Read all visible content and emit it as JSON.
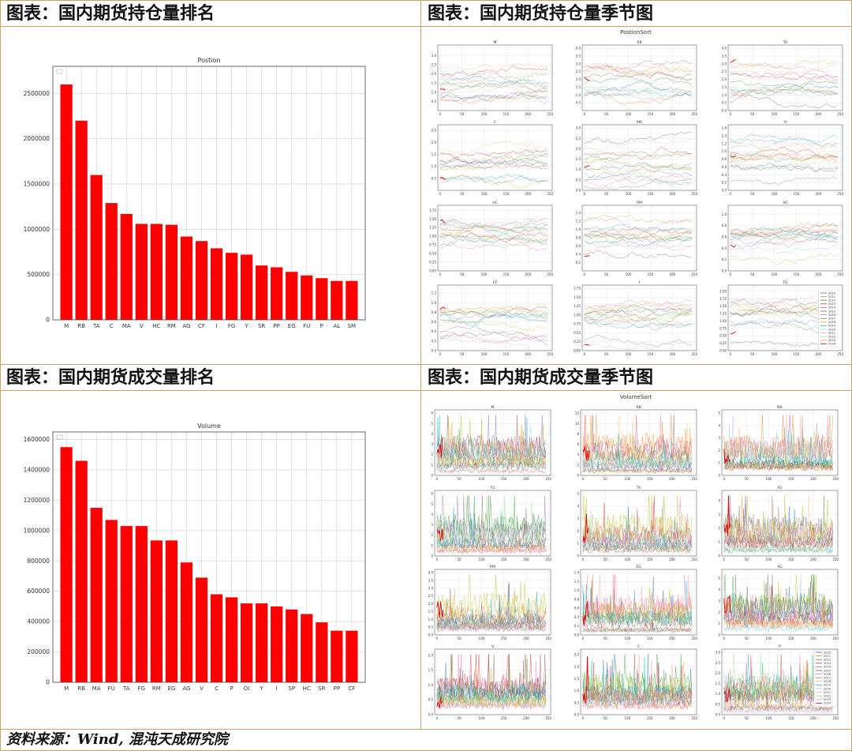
{
  "headers": {
    "position_rank": "图表：国内期货持仓量排名",
    "position_season": "图表：国内期货持仓量季节图",
    "volume_rank": "图表：国内期货成交量排名",
    "volume_season": "图表：国内期货成交量季节图"
  },
  "footer": "资料来源：Wind, 混沌天成研究院",
  "colors": {
    "bar": "#ff0000",
    "series": [
      "#1f77b4",
      "#ff7f0e",
      "#2ca02c",
      "#d62728",
      "#9467bd",
      "#8c564b",
      "#e377c2",
      "#7f7f7f",
      "#bcbd22",
      "#17becf",
      "#aec7e8",
      "#ffbb78",
      "#98df8a",
      "#ff9896",
      "#c5b0d5"
    ]
  },
  "chart_data": [
    {
      "id": "position_rank",
      "type": "bar",
      "title": "Postion",
      "categories": [
        "M",
        "RB",
        "TA",
        "C",
        "MA",
        "V",
        "HC",
        "RM",
        "AG",
        "CF",
        "I",
        "FG",
        "Y",
        "SR",
        "PP",
        "EG",
        "FU",
        "P",
        "AL",
        "SM"
      ],
      "values": [
        2600000,
        2200000,
        1600000,
        1290000,
        1170000,
        1060000,
        1060000,
        1050000,
        920000,
        870000,
        790000,
        740000,
        720000,
        600000,
        580000,
        530000,
        490000,
        460000,
        430000,
        430000
      ],
      "yticks": [
        0,
        500000,
        1000000,
        1500000,
        2000000,
        2500000
      ],
      "ylim": [
        0,
        2800000
      ]
    },
    {
      "id": "volume_rank",
      "type": "bar",
      "title": "Volume",
      "categories": [
        "M",
        "RB",
        "MA",
        "FU",
        "TA",
        "FG",
        "RM",
        "EG",
        "AG",
        "V",
        "C",
        "P",
        "OI",
        "Y",
        "I",
        "SP",
        "HC",
        "SR",
        "PP",
        "CF"
      ],
      "values": [
        1550000,
        1460000,
        1150000,
        1070000,
        1030000,
        1030000,
        935000,
        935000,
        790000,
        690000,
        580000,
        560000,
        520000,
        520000,
        500000,
        480000,
        450000,
        395000,
        340000,
        340000
      ],
      "yticks": [
        0,
        200000,
        400000,
        600000,
        800000,
        1000000,
        1200000,
        1400000,
        1600000
      ],
      "ylim": [
        0,
        1650000
      ]
    },
    {
      "id": "position_season",
      "type": "line",
      "title": "PostionSort",
      "x_ticks": [
        0,
        50,
        100,
        150,
        200,
        250
      ],
      "legend": [
        "2010",
        "2011",
        "2012",
        "2013",
        "2014",
        "2015",
        "2016",
        "2017",
        "2018",
        "2019",
        "2020",
        "2021",
        "2022",
        "2023",
        "2024"
      ],
      "legend_position": "lower-right (last subplot)",
      "subplots": [
        {
          "title": "M",
          "yticks": [
            "0.5",
            "1.0",
            "1.5",
            "2.0",
            "2.5",
            "3.0"
          ],
          "ymax": 3.4
        },
        {
          "title": "RB",
          "yticks": [
            "0.5",
            "1.0",
            "1.5",
            "2.0",
            "2.5",
            "3.0",
            "3.5",
            "4.0"
          ],
          "ymax": 4.0
        },
        {
          "title": "TA",
          "yticks": [
            "0.0",
            "0.5",
            "1.0",
            "1.5",
            "2.0",
            "2.5",
            "3.0",
            "3.5",
            "4.0"
          ],
          "ymax": 4.0
        },
        {
          "title": "C",
          "yticks": [
            "0.5",
            "1.0",
            "1.5",
            "2.0",
            "2.5"
          ],
          "ymax": 2.6
        },
        {
          "title": "MA",
          "yticks": [
            "0.0",
            "0.5",
            "1.0",
            "1.5",
            "2.0",
            "2.5",
            "3.0"
          ],
          "ymax": 3.0
        },
        {
          "title": "V",
          "yticks": [
            "0.0",
            "0.2",
            "0.4",
            "0.6",
            "0.8",
            "1.0",
            "1.2",
            "1.4",
            "1.6"
          ],
          "ymax": 1.6
        },
        {
          "title": "HC",
          "yticks": [
            "0.00",
            "0.25",
            "0.50",
            "0.75",
            "1.00",
            "1.25",
            "1.50",
            "1.75"
          ],
          "ymax": 1.8
        },
        {
          "title": "RM",
          "yticks": [
            "0.2",
            "0.4",
            "0.6",
            "0.8",
            "1.0",
            "1.2",
            "1.4"
          ],
          "ymax": 1.5
        },
        {
          "title": "AG",
          "yticks": [
            "0.0",
            "0.2",
            "0.4",
            "0.6",
            "0.8",
            "1.0"
          ],
          "ymax": 1.1
        },
        {
          "title": "CF",
          "yticks": [
            "0.0",
            "0.2",
            "0.4",
            "0.6",
            "0.8",
            "1.0",
            "1.2"
          ],
          "ymax": 1.3
        },
        {
          "title": "I",
          "yticks": [
            "0.00",
            "0.25",
            "0.50",
            "0.75",
            "1.00",
            "1.25",
            "1.50",
            "1.75"
          ],
          "ymax": 1.75
        },
        {
          "title": "FG",
          "yticks": [
            "0.00",
            "0.25",
            "0.50",
            "0.75",
            "1.00",
            "1.25",
            "1.50",
            "1.75",
            "2.00"
          ],
          "ymax": 2.1
        }
      ]
    },
    {
      "id": "volume_season",
      "type": "line",
      "title": "VolumeSort",
      "x_ticks": [
        0,
        50,
        100,
        150,
        200,
        250
      ],
      "legend": [
        "2010",
        "2011",
        "2012",
        "2013",
        "2014",
        "2015",
        "2016",
        "2017",
        "2018",
        "2019",
        "2020",
        "2021",
        "2022",
        "2023",
        "2024"
      ],
      "legend_position": "upper-right (last subplot)",
      "subplots": [
        {
          "title": "M",
          "yticks": [
            "0",
            "1",
            "2",
            "3",
            "4",
            "5",
            "6"
          ],
          "ymax": 6
        },
        {
          "title": "RB",
          "yticks": [
            "0",
            "2",
            "4",
            "6",
            "8",
            "10",
            "12"
          ],
          "ymax": 12
        },
        {
          "title": "MA",
          "yticks": [
            "0",
            "1",
            "2",
            "3",
            "4",
            "5"
          ],
          "ymax": 5
        },
        {
          "title": "FU",
          "yticks": [
            "0",
            "1",
            "2",
            "3",
            "4",
            "5",
            "6"
          ],
          "ymax": 6
        },
        {
          "title": "TA",
          "yticks": [
            "0",
            "1",
            "2",
            "3",
            "4",
            "5"
          ],
          "ymax": 5
        },
        {
          "title": "FG",
          "yticks": [
            "0",
            "1",
            "2",
            "3",
            "4"
          ],
          "ymax": 4.5
        },
        {
          "title": "RM",
          "yticks": [
            "0.0",
            "0.5",
            "1.0",
            "1.5",
            "2.0",
            "2.5",
            "3.0",
            "3.5",
            "4.0"
          ],
          "ymax": 4.0
        },
        {
          "title": "EG",
          "yticks": [
            "0.0",
            "0.2",
            "0.4",
            "0.6",
            "0.8",
            "1.0",
            "1.2",
            "1.4"
          ],
          "ymax": 1.4
        },
        {
          "title": "AG",
          "yticks": [
            "0",
            "1",
            "2",
            "3",
            "4",
            "5"
          ],
          "ymax": 5.5
        },
        {
          "title": "V",
          "yticks": [
            "0.0",
            "0.5",
            "1.0",
            "1.5",
            "2.0"
          ],
          "ymax": 2.1
        },
        {
          "title": "C",
          "yticks": [
            "0.0",
            "0.5",
            "1.0",
            "1.5",
            "2.0",
            "2.5"
          ],
          "ymax": 2.6
        },
        {
          "title": "P",
          "yticks": [
            "0.0",
            "0.5",
            "1.0",
            "1.5",
            "2.0",
            "2.5",
            "3.0"
          ],
          "ymax": 3.0
        }
      ]
    }
  ]
}
